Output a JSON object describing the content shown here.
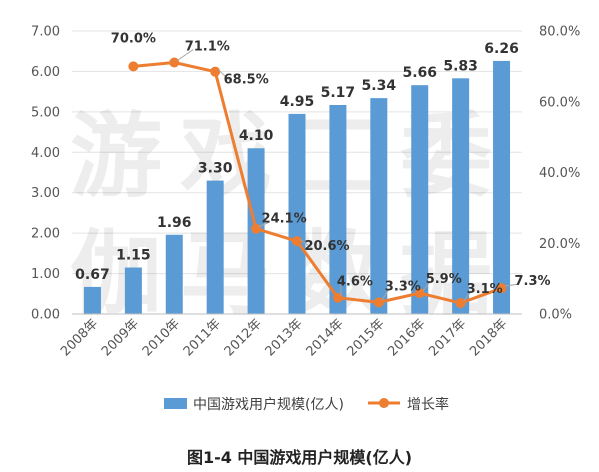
{
  "colors": {
    "bar": "#5B9BD5",
    "line": "#ED7D31",
    "grid": "#E3E3E3",
    "axis_text": "#555555",
    "label_text": "#333333",
    "watermark": "#000000"
  },
  "caption": "图1-4  中国游戏用户规模(亿人)",
  "watermark": {
    "line1": "游戏工委",
    "line2": "伽马数据"
  },
  "chart_data": {
    "type": "bar",
    "categories": [
      "2008年",
      "2009年",
      "2010年",
      "2011年",
      "2012年",
      "2013年",
      "2014年",
      "2015年",
      "2016年",
      "2017年",
      "2018年"
    ],
    "series": [
      {
        "name": "中国游戏用户规模(亿人)",
        "type": "bar",
        "axis": "left",
        "values": [
          0.67,
          1.15,
          1.96,
          3.3,
          4.1,
          4.95,
          5.17,
          5.34,
          5.66,
          5.83,
          6.26
        ],
        "labels": [
          "0.67",
          "1.15",
          "1.96",
          "3.30",
          "4.10",
          "4.95",
          "5.17",
          "5.34",
          "5.66",
          "5.83",
          "6.26"
        ]
      },
      {
        "name": "增长率",
        "type": "line",
        "axis": "right",
        "values": [
          null,
          70.0,
          71.1,
          68.5,
          24.1,
          20.6,
          4.6,
          3.3,
          5.9,
          3.1,
          7.3
        ],
        "labels": [
          null,
          "70.0%",
          "71.1%",
          "68.5%",
          "24.1%",
          "20.6%",
          "4.6%",
          "3.3%",
          "5.9%",
          "3.1%",
          "7.3%"
        ]
      }
    ],
    "y_left": {
      "min": 0,
      "max": 7,
      "ticks": [
        "0.00",
        "1.00",
        "2.00",
        "3.00",
        "4.00",
        "5.00",
        "6.00",
        "7.00"
      ]
    },
    "y_right": {
      "min": 0,
      "max": 80,
      "ticks": [
        "0.0%",
        "20.0%",
        "40.0%",
        "60.0%",
        "80.0%"
      ]
    },
    "grid": true,
    "legend_position": "bottom"
  }
}
